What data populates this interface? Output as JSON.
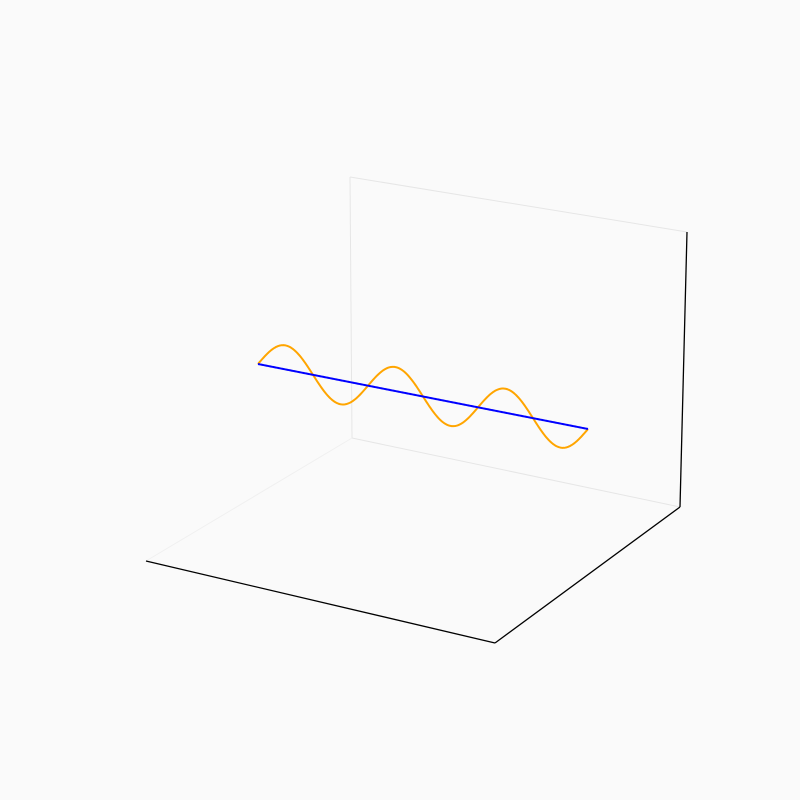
{
  "chart_data": {
    "type": "line",
    "projection": "3d",
    "grid": false,
    "legend": "none",
    "colors": {
      "background": "#fafafa",
      "axis_front": "#000000",
      "axis_back": "#e6e6e6",
      "axis_back_faint": "#f0f0f0"
    },
    "series": [
      {
        "kind": "sinusoid",
        "color": "#ffa500",
        "cycles": 3,
        "amplitude": 1,
        "t_range": [
          0,
          1
        ]
      },
      {
        "kind": "straight",
        "color": "#0000ff",
        "t_range": [
          0,
          1
        ]
      }
    ]
  }
}
